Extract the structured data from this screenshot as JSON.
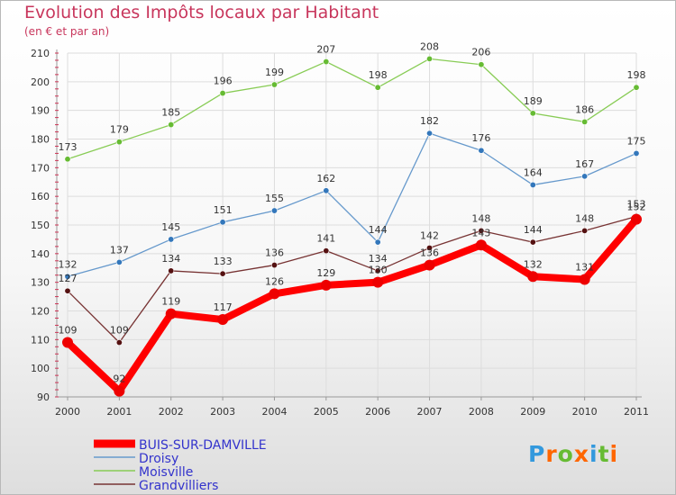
{
  "chart_data": {
    "type": "line",
    "title": "Evolution des Impôts locaux par Habitant",
    "subtitle": "(en € et par an)",
    "xlabel": "",
    "ylabel": "",
    "ylim": [
      90,
      210
    ],
    "yticks": [
      90,
      100,
      110,
      120,
      130,
      140,
      150,
      160,
      170,
      180,
      190,
      200,
      210
    ],
    "categories": [
      "2000",
      "2001",
      "2002",
      "2003",
      "2004",
      "2005",
      "2006",
      "2007",
      "2008",
      "2009",
      "2010",
      "2011"
    ],
    "grid": true,
    "legend_position": "bottom-left",
    "series": [
      {
        "name": "Moisville",
        "color": "#88cc55",
        "marker": "#66bb33",
        "values": [
          173,
          179,
          185,
          196,
          199,
          207,
          198,
          208,
          206,
          189,
          186,
          198
        ]
      },
      {
        "name": "Droisy",
        "color": "#6699cc",
        "marker": "#3377bb",
        "values": [
          132,
          137,
          145,
          151,
          155,
          162,
          144,
          182,
          176,
          164,
          167,
          175
        ]
      },
      {
        "name": "Grandvilliers",
        "color": "#773333",
        "marker": "#551111",
        "values": [
          127,
          109,
          134,
          133,
          136,
          141,
          134,
          142,
          148,
          144,
          148,
          153
        ]
      },
      {
        "name": "BUIS-SUR-DAMVILLE",
        "color": "#ff0000",
        "marker": "#ee0000",
        "values": [
          109,
          92,
          119,
          117,
          126,
          129,
          130,
          136,
          143,
          132,
          131,
          152
        ]
      }
    ],
    "legend_order": [
      "BUIS-SUR-DAMVILLE",
      "Droisy",
      "Moisville",
      "Grandvilliers"
    ]
  },
  "logo": {
    "text": "Proxiti",
    "colors": [
      "#3399dd",
      "#ff6600",
      "#66bb33",
      "#ff6600",
      "#3399dd",
      "#66bb33",
      "#ff6600"
    ]
  }
}
